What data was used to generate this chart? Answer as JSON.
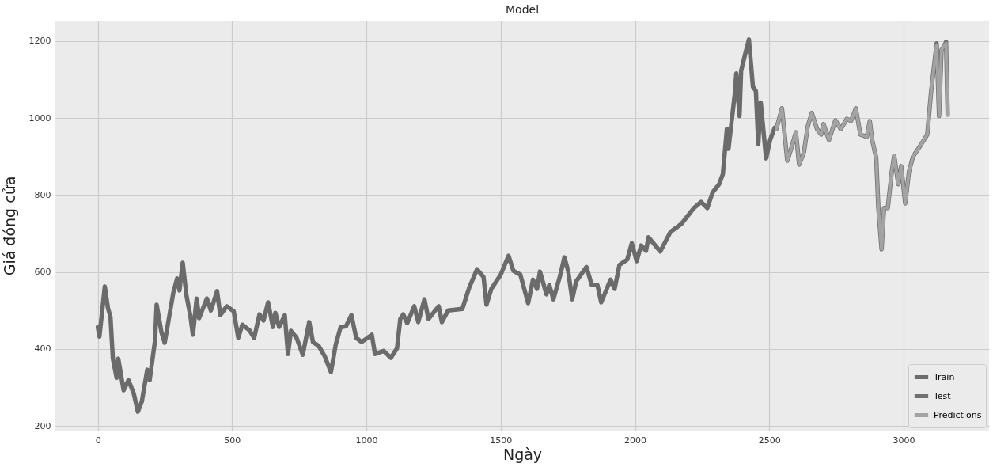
{
  "chart_data": {
    "type": "line",
    "title": "Model",
    "xlabel": "Ngày",
    "ylabel": "Giá đóng cửa",
    "xlim": [
      -158,
      3318
    ],
    "xticks": [
      0,
      500,
      1000,
      1500,
      2000,
      2500,
      3000
    ],
    "ylim": [
      188,
      1253
    ],
    "yticks": [
      200,
      400,
      600,
      800,
      1000,
      1200
    ],
    "grid": true,
    "legend": "bottom right",
    "marker": "none",
    "line_style": "solid",
    "series": [
      {
        "name": "Train",
        "color": "#6b6b6b",
        "x": [
          0,
          6,
          26,
          38,
          47,
          56,
          70,
          76,
          96,
          114,
          134,
          149,
          164,
          184,
          193,
          213,
          219,
          237,
          249,
          281,
          295,
          304,
          316,
          330,
          345,
          354,
          368,
          377,
          406,
          421,
          444,
          456,
          480,
          506,
          523,
          538,
          564,
          582,
          602,
          617,
          634,
          652,
          661,
          675,
          696,
          708,
          719,
          740,
          763,
          787,
          801,
          822,
          845,
          868,
          886,
          904,
          924,
          944,
          962,
          982,
          1020,
          1032,
          1064,
          1091,
          1114,
          1126,
          1137,
          1152,
          1178,
          1193,
          1216,
          1231,
          1269,
          1281,
          1304,
          1357,
          1383,
          1412,
          1436,
          1447,
          1465,
          1500,
          1529,
          1547,
          1573,
          1602,
          1620,
          1635,
          1646,
          1670,
          1681,
          1696,
          1722,
          1737,
          1751,
          1766,
          1781,
          1819,
          1839,
          1860,
          1874,
          1909,
          1924,
          1942,
          1971,
          1988,
          2006,
          2023,
          2041,
          2050,
          2094,
          2132,
          2173,
          2219,
          2246,
          2269,
          2289,
          2313,
          2327,
          2342,
          2348,
          2371,
          2377,
          2389,
          2395,
          2409,
          2424,
          2439,
          2450,
          2459,
          2468,
          2488,
          2503,
          2520
        ],
        "values": [
          457,
          432,
          562,
          505,
          484,
          375,
          325,
          375,
          293,
          319,
          284,
          237,
          264,
          346,
          319,
          422,
          515,
          443,
          416,
          546,
          583,
          552,
          624,
          539,
          484,
          437,
          531,
          480,
          531,
          500,
          550,
          488,
          511,
          498,
          429,
          463,
          449,
          429,
          490,
          474,
          521,
          457,
          494,
          457,
          488,
          387,
          447,
          429,
          385,
          470,
          418,
          408,
          381,
          340,
          412,
          457,
          459,
          488,
          429,
          418,
          437,
          387,
          395,
          377,
          402,
          478,
          490,
          467,
          511,
          470,
          529,
          478,
          511,
          470,
          500,
          504,
          560,
          607,
          587,
          515,
          556,
          593,
          642,
          603,
          593,
          519,
          580,
          556,
          601,
          542,
          566,
          529,
          593,
          638,
          603,
          529,
          576,
          613,
          566,
          566,
          521,
          580,
          556,
          618,
          632,
          675,
          628,
          669,
          655,
          690,
          653,
          704,
          725,
          766,
          782,
          766,
          807,
          828,
          854,
          972,
          920,
          1060,
          1116,
          1005,
          1122,
          1163,
          1204,
          1081,
          1070,
          933,
          1040,
          895,
          943,
          975
        ]
      },
      {
        "name": "Test",
        "color": "#707070",
        "x": [
          2526,
          2547,
          2567,
          2582,
          2599,
          2611,
          2629,
          2643,
          2658,
          2678,
          2693,
          2702,
          2722,
          2746,
          2766,
          2789,
          2804,
          2822,
          2839,
          2863,
          2874,
          2883,
          2898,
          2906,
          2918,
          2927,
          2941,
          2956,
          2965,
          2980,
          2991,
          3006,
          3020,
          3035,
          3064,
          3088,
          3102,
          3123,
          3132,
          3141,
          3152,
          3158,
          3164
        ],
        "values": [
          971,
          1025,
          889,
          922,
          963,
          879,
          912,
          978,
          1013,
          971,
          957,
          984,
          943,
          994,
          971,
          998,
          992,
          1025,
          957,
          951,
          992,
          943,
          896,
          766,
          659,
          766,
          766,
          861,
          902,
          828,
          875,
          778,
          861,
          900,
          930,
          957,
          1066,
          1194,
          1005,
          1177,
          1188,
          1198,
          1009
        ]
      },
      {
        "name": "Predictions",
        "color": "#a3a3a3",
        "x": [
          2526,
          2547,
          2567,
          2582,
          2599,
          2611,
          2629,
          2643,
          2658,
          2678,
          2693,
          2702,
          2722,
          2746,
          2766,
          2789,
          2804,
          2822,
          2839,
          2863,
          2874,
          2883,
          2898,
          2906,
          2918,
          2927,
          2941,
          2956,
          2965,
          2980,
          2991,
          3006,
          3020,
          3035,
          3064,
          3088,
          3102,
          3123,
          3132,
          3141,
          3152,
          3158,
          3164
        ],
        "values": [
          971,
          1025,
          889,
          922,
          963,
          879,
          912,
          978,
          1013,
          971,
          957,
          984,
          943,
          994,
          971,
          998,
          992,
          1025,
          957,
          951,
          992,
          943,
          896,
          766,
          659,
          766,
          766,
          861,
          902,
          828,
          875,
          778,
          861,
          900,
          930,
          957,
          1066,
          1190,
          1005,
          1177,
          1188,
          1194,
          1009
        ]
      }
    ]
  }
}
